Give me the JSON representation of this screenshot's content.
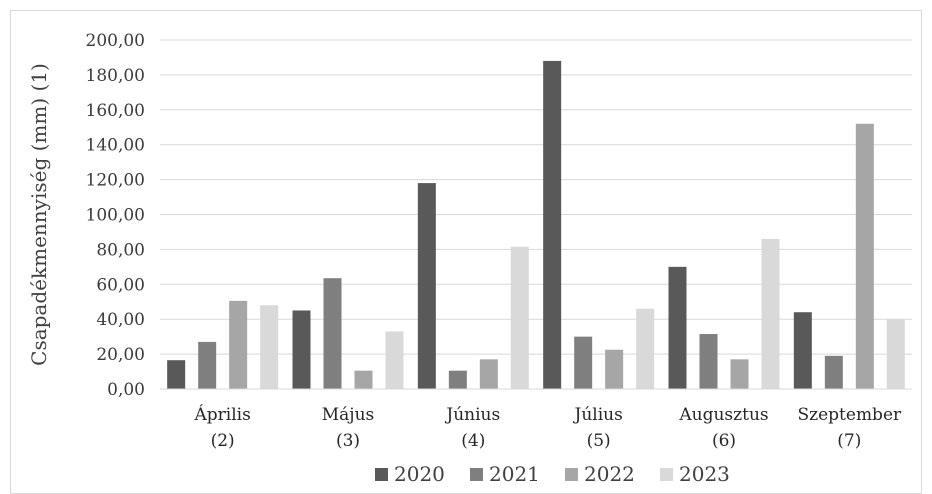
{
  "chart_data": {
    "type": "bar",
    "ylabel": "Csapadékmennyiség (mm) (1)",
    "ylim": [
      0,
      200
    ],
    "ytick_step": 20,
    "ytick_labels": [
      "0,00",
      "20,00",
      "40,00",
      "60,00",
      "80,00",
      "100,00",
      "120,00",
      "140,00",
      "160,00",
      "180,00",
      "200,00"
    ],
    "categories": [
      {
        "line1": "Április",
        "line2": "(2)"
      },
      {
        "line1": "Május",
        "line2": "(3)"
      },
      {
        "line1": "Június",
        "line2": "(4)"
      },
      {
        "line1": "Július",
        "line2": "(5)"
      },
      {
        "line1": "Augusztus",
        "line2": "(6)"
      },
      {
        "line1": "Szeptember",
        "line2": "(7)"
      }
    ],
    "series": [
      {
        "name": "2020",
        "color": "#595959",
        "values": [
          16.5,
          45.0,
          118.0,
          188.0,
          70.0,
          44.0
        ]
      },
      {
        "name": "2021",
        "color": "#7f7f7f",
        "values": [
          27.0,
          63.5,
          10.5,
          30.0,
          31.5,
          19.0
        ]
      },
      {
        "name": "2022",
        "color": "#a6a6a6",
        "values": [
          50.5,
          10.5,
          17.0,
          22.5,
          17.0,
          152.0
        ]
      },
      {
        "name": "2023",
        "color": "#d9d9d9",
        "values": [
          48.0,
          33.0,
          81.5,
          46.0,
          86.0,
          40.0
        ]
      }
    ],
    "grid": true,
    "legend_position": "bottom"
  }
}
